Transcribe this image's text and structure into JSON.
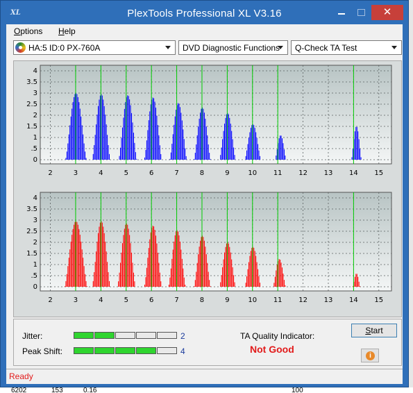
{
  "window": {
    "title": "PlexTools Professional XL V3.16",
    "icon_label": "XL",
    "close_glyph": "✕"
  },
  "menu": [
    {
      "accel": "O",
      "rest": "ptions"
    },
    {
      "accel": "H",
      "rest": "elp"
    }
  ],
  "toolbar": {
    "drive": "HA:5 ID:0  PX-760A",
    "function": "DVD Diagnostic Functions",
    "test": "Q-Check TA Test"
  },
  "colors": {
    "top_bars": "#0000ff",
    "bottom_bars": "#ff0000",
    "peak_lines": "#00cc00",
    "plot_bg": "#cfd8d8"
  },
  "chart_data": [
    {
      "type": "bar",
      "id": "top",
      "ylim": [
        0,
        4
      ],
      "yticks": [
        "0",
        ".5",
        "1",
        "1.5",
        "2",
        "2.5",
        "3",
        "3.5",
        "4"
      ],
      "xticks": [
        "2",
        "3",
        "4",
        "5",
        "6",
        "7",
        "8",
        "9",
        "10",
        "11",
        "12",
        "13",
        "14",
        "15"
      ],
      "xlim": [
        1.6,
        15.5
      ],
      "peak_lines": [
        3,
        4,
        5,
        6,
        7,
        8,
        9,
        10,
        11,
        14
      ],
      "humps": [
        {
          "center": 3.0,
          "height": 3.0,
          "width": 0.42
        },
        {
          "center": 4.0,
          "height": 2.95,
          "width": 0.36
        },
        {
          "center": 5.05,
          "height": 2.9,
          "width": 0.36
        },
        {
          "center": 6.05,
          "height": 2.8,
          "width": 0.35
        },
        {
          "center": 7.05,
          "height": 2.55,
          "width": 0.34
        },
        {
          "center": 8.0,
          "height": 2.35,
          "width": 0.33
        },
        {
          "center": 9.0,
          "height": 2.1,
          "width": 0.32
        },
        {
          "center": 10.0,
          "height": 1.6,
          "width": 0.32
        },
        {
          "center": 11.1,
          "height": 1.1,
          "width": 0.22
        },
        {
          "center": 14.1,
          "height": 1.5,
          "width": 0.2
        }
      ],
      "grid": true
    },
    {
      "type": "bar",
      "id": "bottom",
      "ylim": [
        0,
        4
      ],
      "yticks": [
        "0",
        ".5",
        "1",
        "1.5",
        "2",
        "2.5",
        "3",
        "3.5",
        "4"
      ],
      "xticks": [
        "2",
        "3",
        "4",
        "5",
        "6",
        "7",
        "8",
        "9",
        "10",
        "11",
        "12",
        "13",
        "14",
        "15"
      ],
      "xlim": [
        1.6,
        15.5
      ],
      "peak_lines": [
        3,
        4,
        5,
        6,
        7,
        8,
        9,
        10,
        11,
        14
      ],
      "humps": [
        {
          "center": 3.0,
          "height": 2.95,
          "width": 0.45
        },
        {
          "center": 4.0,
          "height": 2.95,
          "width": 0.36
        },
        {
          "center": 5.0,
          "height": 2.85,
          "width": 0.36
        },
        {
          "center": 6.05,
          "height": 2.75,
          "width": 0.35
        },
        {
          "center": 7.0,
          "height": 2.55,
          "width": 0.34
        },
        {
          "center": 8.0,
          "height": 2.3,
          "width": 0.33
        },
        {
          "center": 9.0,
          "height": 2.0,
          "width": 0.32
        },
        {
          "center": 10.0,
          "height": 1.8,
          "width": 0.32
        },
        {
          "center": 11.05,
          "height": 1.25,
          "width": 0.25
        },
        {
          "center": 14.1,
          "height": 0.6,
          "width": 0.15
        }
      ],
      "grid": true
    }
  ],
  "metrics": {
    "jitter": {
      "label": "Jitter:",
      "segments_on": 2,
      "segments_total": 5,
      "value": "2"
    },
    "peak_shift": {
      "label": "Peak Shift:",
      "segments_on": 4,
      "segments_total": 5,
      "value": "4"
    }
  },
  "ta_quality": {
    "label": "TA Quality Indicator:",
    "value": "Not Good"
  },
  "buttons": {
    "start_accel": "S",
    "start_rest": "tart",
    "info_glyph": "i"
  },
  "status": "Ready",
  "background_strip": [
    "6202",
    "153",
    "0.16",
    "100"
  ]
}
